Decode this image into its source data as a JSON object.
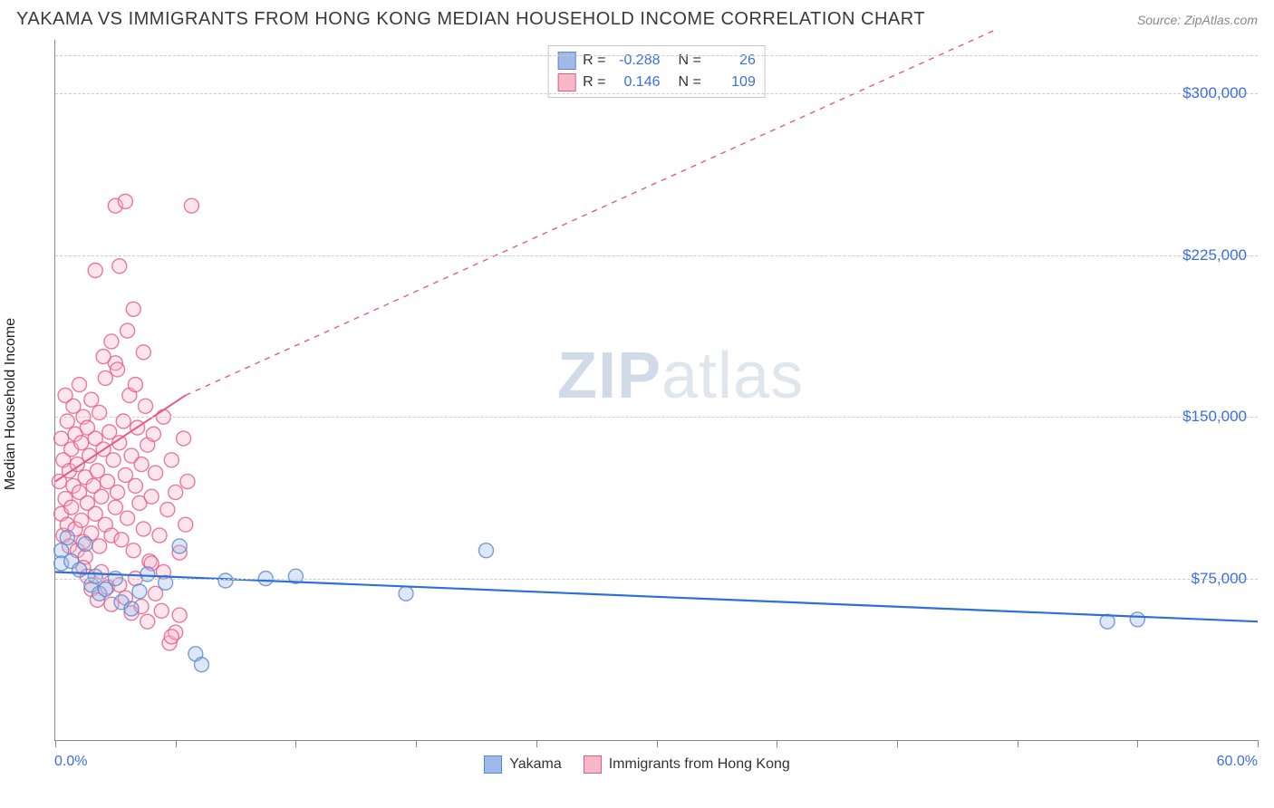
{
  "header": {
    "title": "YAKAMA VS IMMIGRANTS FROM HONG KONG MEDIAN HOUSEHOLD INCOME CORRELATION CHART",
    "source": "Source: ZipAtlas.com"
  },
  "watermark": {
    "prefix": "ZIP",
    "suffix": "atlas"
  },
  "ylabel": "Median Household Income",
  "chart": {
    "type": "scatter",
    "xlim": [
      0,
      60
    ],
    "ylim": [
      0,
      325000
    ],
    "x_tick_positions": [
      0,
      6,
      12,
      18,
      24,
      30,
      36,
      42,
      48,
      54,
      60
    ],
    "x_min_label": "0.0%",
    "x_max_label": "60.0%",
    "y_gridlines": [
      75000,
      150000,
      225000,
      300000
    ],
    "y_grid_labels": [
      "$75,000",
      "$150,000",
      "$225,000",
      "$300,000"
    ],
    "grid_color": "#cccccc",
    "background_color": "#ffffff",
    "axis_color": "#888888",
    "tick_label_color": "#3b6fe0",
    "marker_radius": 8,
    "marker_opacity": 0.35,
    "marker_stroke_width": 1.4
  },
  "series": {
    "yakama": {
      "label": "Yakama",
      "color_fill": "#9fb9e8",
      "color_stroke": "#5a86d6",
      "R": "-0.288",
      "N": "26",
      "trend": {
        "x1": 0,
        "y1": 78000,
        "x2": 60,
        "y2": 55000,
        "dashed_after_x": null,
        "width": 2.2
      },
      "points": [
        [
          0.3,
          88000
        ],
        [
          0.3,
          82000
        ],
        [
          0.6,
          94000
        ],
        [
          0.8,
          83000
        ],
        [
          1.2,
          79000
        ],
        [
          1.5,
          91000
        ],
        [
          1.8,
          72000
        ],
        [
          2.0,
          76000
        ],
        [
          2.2,
          68000
        ],
        [
          2.5,
          70000
        ],
        [
          3.0,
          75000
        ],
        [
          3.3,
          64000
        ],
        [
          3.8,
          61000
        ],
        [
          4.2,
          69000
        ],
        [
          4.6,
          77000
        ],
        [
          5.5,
          73000
        ],
        [
          6.2,
          90000
        ],
        [
          7.0,
          40000
        ],
        [
          7.3,
          35000
        ],
        [
          8.5,
          74000
        ],
        [
          10.5,
          75000
        ],
        [
          12.0,
          76000
        ],
        [
          17.5,
          68000
        ],
        [
          21.5,
          88000
        ],
        [
          52.5,
          55000
        ],
        [
          54.0,
          56000
        ]
      ]
    },
    "hk": {
      "label": "Immigrants from Hong Kong",
      "color_fill": "#f7b8c8",
      "color_stroke": "#e55a87",
      "R": "0.146",
      "N": "109",
      "trend": {
        "x1": 0,
        "y1": 120000,
        "x2_solid": 6.5,
        "y2_solid": 160000,
        "x2_dash": 47,
        "y2_dash": 330000,
        "width": 2.0
      },
      "points": [
        [
          0.2,
          120000
        ],
        [
          0.3,
          105000
        ],
        [
          0.3,
          140000
        ],
        [
          0.4,
          95000
        ],
        [
          0.4,
          130000
        ],
        [
          0.5,
          112000
        ],
        [
          0.5,
          160000
        ],
        [
          0.6,
          100000
        ],
        [
          0.6,
          148000
        ],
        [
          0.7,
          125000
        ],
        [
          0.7,
          90000
        ],
        [
          0.8,
          135000
        ],
        [
          0.8,
          108000
        ],
        [
          0.9,
          118000
        ],
        [
          0.9,
          155000
        ],
        [
          1.0,
          98000
        ],
        [
          1.0,
          142000
        ],
        [
          1.1,
          88000
        ],
        [
          1.1,
          128000
        ],
        [
          1.2,
          115000
        ],
        [
          1.2,
          165000
        ],
        [
          1.3,
          102000
        ],
        [
          1.3,
          138000
        ],
        [
          1.4,
          92000
        ],
        [
          1.4,
          150000
        ],
        [
          1.5,
          122000
        ],
        [
          1.5,
          85000
        ],
        [
          1.6,
          110000
        ],
        [
          1.6,
          145000
        ],
        [
          1.7,
          132000
        ],
        [
          1.8,
          96000
        ],
        [
          1.8,
          158000
        ],
        [
          1.9,
          118000
        ],
        [
          2.0,
          105000
        ],
        [
          2.0,
          140000
        ],
        [
          2.1,
          125000
        ],
        [
          2.2,
          90000
        ],
        [
          2.2,
          152000
        ],
        [
          2.3,
          113000
        ],
        [
          2.4,
          135000
        ],
        [
          2.5,
          100000
        ],
        [
          2.5,
          168000
        ],
        [
          2.6,
          120000
        ],
        [
          2.7,
          143000
        ],
        [
          2.8,
          95000
        ],
        [
          2.9,
          130000
        ],
        [
          3.0,
          108000
        ],
        [
          3.0,
          175000
        ],
        [
          3.1,
          115000
        ],
        [
          3.2,
          138000
        ],
        [
          3.3,
          93000
        ],
        [
          3.4,
          148000
        ],
        [
          3.5,
          123000
        ],
        [
          3.6,
          103000
        ],
        [
          3.7,
          160000
        ],
        [
          3.8,
          132000
        ],
        [
          3.9,
          88000
        ],
        [
          4.0,
          118000
        ],
        [
          4.1,
          145000
        ],
        [
          4.2,
          110000
        ],
        [
          4.3,
          128000
        ],
        [
          4.4,
          98000
        ],
        [
          4.5,
          155000
        ],
        [
          4.6,
          137000
        ],
        [
          4.7,
          83000
        ],
        [
          4.8,
          113000
        ],
        [
          4.9,
          142000
        ],
        [
          5.0,
          124000
        ],
        [
          5.2,
          95000
        ],
        [
          5.4,
          150000
        ],
        [
          5.6,
          107000
        ],
        [
          5.8,
          130000
        ],
        [
          6.0,
          115000
        ],
        [
          6.2,
          87000
        ],
        [
          6.4,
          140000
        ],
        [
          6.6,
          120000
        ],
        [
          3.2,
          220000
        ],
        [
          2.0,
          218000
        ],
        [
          3.0,
          248000
        ],
        [
          3.5,
          250000
        ],
        [
          6.8,
          248000
        ],
        [
          1.4,
          80000
        ],
        [
          1.6,
          76000
        ],
        [
          1.8,
          70000
        ],
        [
          2.1,
          65000
        ],
        [
          2.3,
          78000
        ],
        [
          2.6,
          71000
        ],
        [
          2.8,
          63000
        ],
        [
          3.2,
          72000
        ],
        [
          3.5,
          66000
        ],
        [
          3.8,
          59000
        ],
        [
          4.0,
          75000
        ],
        [
          4.3,
          62000
        ],
        [
          4.6,
          55000
        ],
        [
          5.0,
          68000
        ],
        [
          5.3,
          60000
        ],
        [
          5.7,
          45000
        ],
        [
          6.0,
          50000
        ],
        [
          2.4,
          178000
        ],
        [
          2.8,
          185000
        ],
        [
          3.1,
          172000
        ],
        [
          3.6,
          190000
        ],
        [
          4.0,
          165000
        ],
        [
          4.4,
          180000
        ],
        [
          4.8,
          82000
        ],
        [
          5.4,
          78000
        ],
        [
          5.8,
          48000
        ],
        [
          6.2,
          58000
        ],
        [
          6.5,
          100000
        ],
        [
          3.9,
          200000
        ]
      ]
    }
  },
  "legend": {
    "items": [
      {
        "key": "yakama",
        "label": "Yakama"
      },
      {
        "key": "hk",
        "label": "Immigrants from Hong Kong"
      }
    ]
  }
}
